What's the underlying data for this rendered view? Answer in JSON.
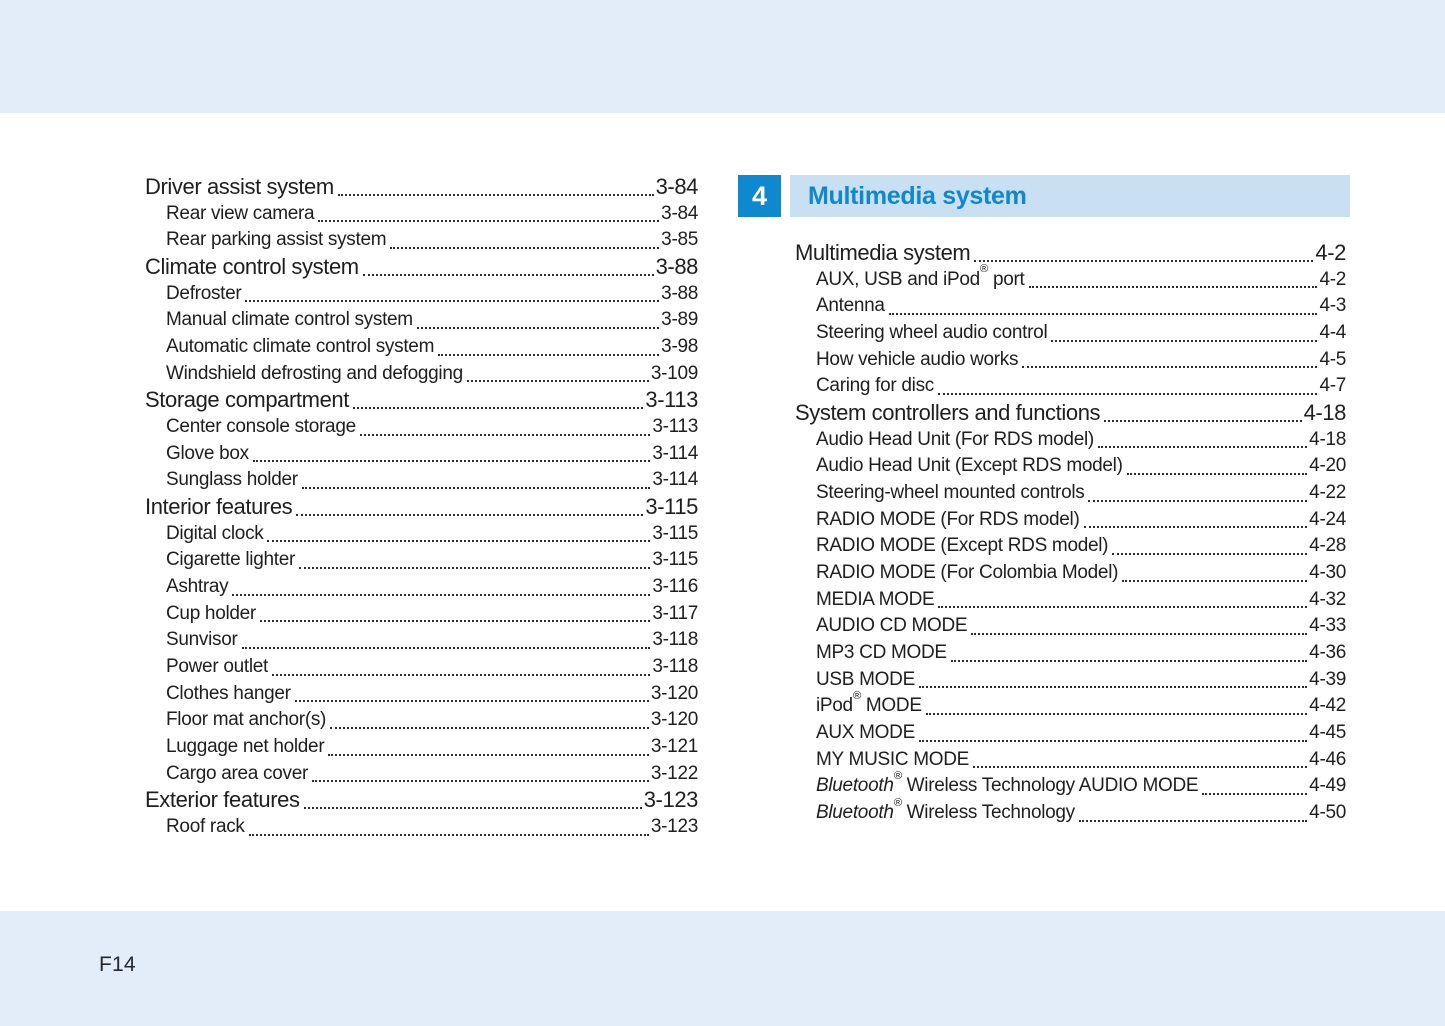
{
  "page": {
    "footer_page_number": "F14"
  },
  "colors": {
    "page_band_bg": "#e2edf9",
    "chapter_box_bg": "#0e88ce",
    "chapter_band_bg": "#c9dff2",
    "chapter_title_text": "#0e88ce",
    "body_text": "#1e1e20"
  },
  "chapter_header": {
    "number": "4",
    "title": "Multimedia system"
  },
  "toc_left": {
    "entries": [
      {
        "label": "Driver assist system",
        "page": "3-84",
        "level": "main"
      },
      {
        "label": "Rear view camera",
        "page": "3-84",
        "level": "sub"
      },
      {
        "label": "Rear parking assist system",
        "page": "3-85",
        "level": "sub"
      },
      {
        "label": "Climate control system",
        "page": "3-88",
        "level": "main"
      },
      {
        "label": "Defroster",
        "page": "3-88",
        "level": "sub"
      },
      {
        "label": "Manual climate control system",
        "page": "3-89",
        "level": "sub"
      },
      {
        "label": "Automatic climate control system",
        "page": "3-98",
        "level": "sub"
      },
      {
        "label": "Windshield defrosting and defogging",
        "page": "3-109",
        "level": "sub"
      },
      {
        "label": "Storage compartment",
        "page": "3-113",
        "level": "main"
      },
      {
        "label": "Center console storage",
        "page": "3-113",
        "level": "sub"
      },
      {
        "label": "Glove box",
        "page": "3-114",
        "level": "sub"
      },
      {
        "label": "Sunglass holder",
        "page": "3-114",
        "level": "sub"
      },
      {
        "label": "Interior features",
        "page": "3-115",
        "level": "main"
      },
      {
        "label": "Digital clock",
        "page": "3-115",
        "level": "sub"
      },
      {
        "label": "Cigarette lighter",
        "page": "3-115",
        "level": "sub"
      },
      {
        "label": "Ashtray",
        "page": "3-116",
        "level": "sub"
      },
      {
        "label": "Cup holder",
        "page": "3-117",
        "level": "sub"
      },
      {
        "label": "Sunvisor",
        "page": "3-118",
        "level": "sub"
      },
      {
        "label": "Power outlet",
        "page": "3-118",
        "level": "sub"
      },
      {
        "label": "Clothes hanger",
        "page": "3-120",
        "level": "sub"
      },
      {
        "label": "Floor mat anchor(s)",
        "page": "3-120",
        "level": "sub"
      },
      {
        "label": "Luggage net holder",
        "page": "3-121",
        "level": "sub"
      },
      {
        "label": "Cargo area cover",
        "page": "3-122",
        "level": "sub"
      },
      {
        "label": "Exterior features",
        "page": "3-123",
        "level": "main"
      },
      {
        "label": "Roof rack",
        "page": "3-123",
        "level": "sub"
      }
    ]
  },
  "toc_right": {
    "entries": [
      {
        "label": "Multimedia system",
        "page": "4-2",
        "level": "main"
      },
      {
        "label": "AUX, USB and iPod® port",
        "page": "4-2",
        "level": "sub"
      },
      {
        "label": "Antenna",
        "page": "4-3",
        "level": "sub"
      },
      {
        "label": "Steering wheel audio control",
        "page": "4-4",
        "level": "sub"
      },
      {
        "label": "How vehicle audio works",
        "page": "4-5",
        "level": "sub"
      },
      {
        "label": "Caring for disc",
        "page": "4-7",
        "level": "sub"
      },
      {
        "label": "System controllers and functions",
        "page": "4-18",
        "level": "main"
      },
      {
        "label": "Audio Head Unit (For RDS model)",
        "page": "4-18",
        "level": "sub"
      },
      {
        "label": "Audio Head Unit (Except RDS model)",
        "page": "4-20",
        "level": "sub"
      },
      {
        "label": "Steering-wheel mounted controls",
        "page": "4-22",
        "level": "sub"
      },
      {
        "label": "RADIO MODE (For RDS model)",
        "page": "4-24",
        "level": "sub"
      },
      {
        "label": "RADIO MODE (Except RDS model)",
        "page": "4-28",
        "level": "sub"
      },
      {
        "label": "RADIO MODE (For Colombia Model)",
        "page": "4-30",
        "level": "sub"
      },
      {
        "label": "MEDIA MODE",
        "page": "4-32",
        "level": "sub"
      },
      {
        "label": "AUDIO CD MODE",
        "page": "4-33",
        "level": "sub"
      },
      {
        "label": "MP3 CD MODE",
        "page": "4-36",
        "level": "sub"
      },
      {
        "label": "USB MODE",
        "page": "4-39",
        "level": "sub"
      },
      {
        "label": "iPod® MODE",
        "page": "4-42",
        "level": "sub"
      },
      {
        "label": "AUX MODE",
        "page": "4-45",
        "level": "sub"
      },
      {
        "label": "MY MUSIC MODE",
        "page": "4-46",
        "level": "sub"
      },
      {
        "label": "Bluetooth® Wireless Technology AUDIO MODE",
        "page": "4-49",
        "level": "sub",
        "parts": [
          {
            "text": "Bluetooth®",
            "italic": true
          },
          {
            "text": " Wireless Technology AUDIO MODE",
            "italic": false
          }
        ]
      },
      {
        "label": "Bluetooth® Wireless Technology",
        "page": "4-50",
        "level": "sub",
        "parts": [
          {
            "text": "Bluetooth®",
            "italic": true
          },
          {
            "text": " Wireless Technology",
            "italic": false
          }
        ]
      }
    ]
  }
}
